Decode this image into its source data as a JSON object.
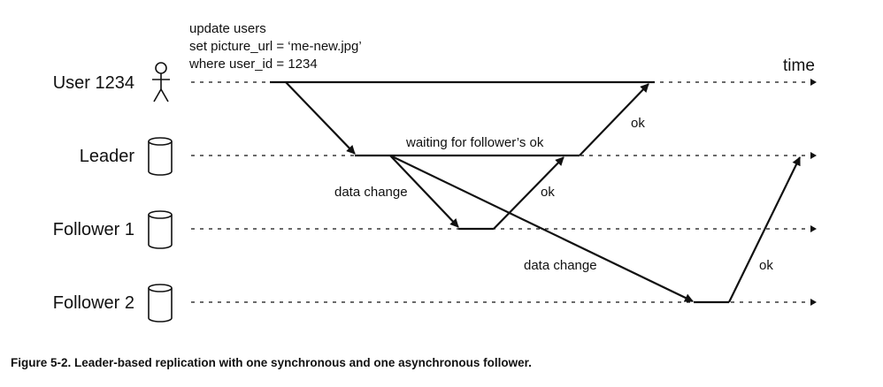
{
  "query": {
    "line1": "update users",
    "line2": "set picture_url = ‘me-new.jpg’",
    "line3": "where user_id = 1234"
  },
  "time_label": "time",
  "actors": [
    {
      "label": "User 1234",
      "icon": "person-icon"
    },
    {
      "label": "Leader",
      "icon": "database-icon"
    },
    {
      "label": "Follower 1",
      "icon": "database-icon"
    },
    {
      "label": "Follower 2",
      "icon": "database-icon"
    }
  ],
  "messages": {
    "waiting": "waiting for follower’s ok",
    "data_change_f1": "data change",
    "data_change_f2": "data change",
    "ok_f1": "ok",
    "ok_leader": "ok",
    "ok_f2": "ok"
  },
  "caption": "Figure 5-2. Leader-based replication with one synchronous and one asynchronous follower."
}
